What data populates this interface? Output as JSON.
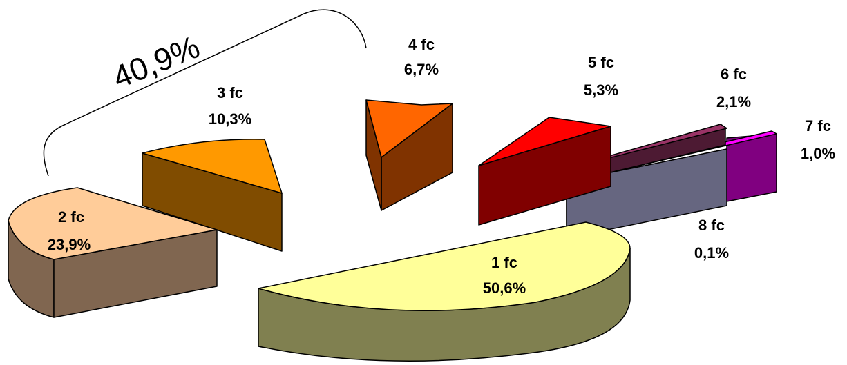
{
  "chart_data": {
    "type": "pie",
    "style": "3d-exploded",
    "slices": [
      {
        "key": "s1",
        "category": "1 fc",
        "value": 50.6,
        "value_label": "50,6%",
        "top_color": "#FFFF99",
        "side_color": "#808050"
      },
      {
        "key": "s2",
        "category": "2 fc",
        "value": 23.9,
        "value_label": "23,9%",
        "top_color": "#FFCC99",
        "side_color": "#806650"
      },
      {
        "key": "s3",
        "category": "3 fc",
        "value": 10.3,
        "value_label": "10,3%",
        "top_color": "#FF9900",
        "side_color": "#804C00"
      },
      {
        "key": "s4",
        "category": "4 fc",
        "value": 6.7,
        "value_label": "6,7%",
        "top_color": "#FF6600",
        "side_color": "#803300"
      },
      {
        "key": "s5",
        "category": "5 fc",
        "value": 5.3,
        "value_label": "5,3%",
        "top_color": "#FF0000",
        "side_color": "#800000"
      },
      {
        "key": "s6",
        "category": "6 fc",
        "value": 2.1,
        "value_label": "2,1%",
        "top_color": "#993366",
        "side_color": "#4D1A33"
      },
      {
        "key": "s7",
        "category": "7 fc",
        "value": 1.0,
        "value_label": "1,0%",
        "top_color": "#FF00FF",
        "side_color": "#800080"
      },
      {
        "key": "s8",
        "category": "8 fc",
        "value": 0.1,
        "value_label": "0,1%",
        "top_color": "#9999CC",
        "side_color": "#666680"
      }
    ],
    "annotations": [
      {
        "text": "40,9%",
        "applies_to": [
          "2 fc",
          "3 fc",
          "4 fc"
        ]
      }
    ],
    "legend": "none"
  }
}
